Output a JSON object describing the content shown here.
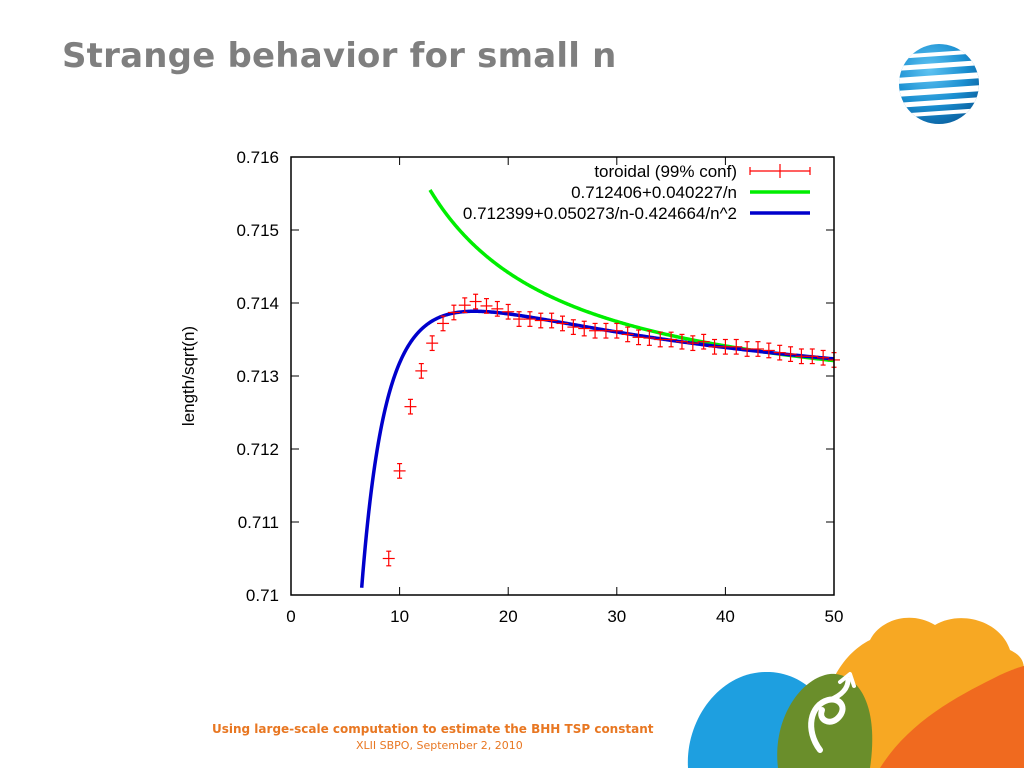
{
  "slide": {
    "title": "Strange behavior for small n",
    "footer_main": "Using large-scale computation to estimate the BHH TSP constant",
    "footer_sub": "XLII SBPO, September 2, 2010"
  },
  "logo": {
    "icon": "att-globe-icon",
    "colors": [
      "#1a8fd1",
      "#0a5f9e",
      "#ffffff"
    ]
  },
  "decor": {
    "icon": "cloud-swirl-decoration",
    "colors": [
      "#1e9fe0",
      "#f7a823",
      "#f06a1f",
      "#6a8e2b"
    ]
  },
  "chart_data": {
    "type": "line",
    "title": "",
    "xlabel": "",
    "ylabel": "length/sqrt(n)",
    "xlim": [
      0,
      50
    ],
    "ylim": [
      0.71,
      0.716
    ],
    "x_ticks": [
      0,
      10,
      20,
      30,
      40,
      50
    ],
    "x_tick_labels": [
      "0",
      "10",
      "20",
      "30",
      "40",
      "50"
    ],
    "y_ticks": [
      0.71,
      0.711,
      0.712,
      0.713,
      0.714,
      0.715,
      0.716
    ],
    "y_tick_labels": [
      "0.71",
      "0.711",
      "0.712",
      "0.713",
      "0.714",
      "0.715",
      "0.716"
    ],
    "legend_position": "top-right",
    "series": [
      {
        "name": "toroidal (99% conf)",
        "kind": "errorbar",
        "color": "#ff0000",
        "x": [
          9,
          10,
          11,
          12,
          13,
          14,
          15,
          16,
          17,
          18,
          19,
          20,
          21,
          22,
          23,
          24,
          25,
          26,
          27,
          28,
          29,
          30,
          31,
          32,
          33,
          34,
          35,
          36,
          37,
          38,
          39,
          40,
          41,
          42,
          43,
          44,
          45,
          46,
          47,
          48,
          49,
          50
        ],
        "y": [
          0.7105,
          0.7117,
          0.71258,
          0.71307,
          0.71345,
          0.71372,
          0.71387,
          0.71397,
          0.71402,
          0.71396,
          0.71392,
          0.71388,
          0.71378,
          0.71378,
          0.71376,
          0.71376,
          0.71372,
          0.71367,
          0.71365,
          0.71362,
          0.71362,
          0.71362,
          0.71357,
          0.71353,
          0.71352,
          0.7135,
          0.7135,
          0.71347,
          0.71345,
          0.71347,
          0.7134,
          0.7134,
          0.7134,
          0.71337,
          0.71337,
          0.71335,
          0.71332,
          0.7133,
          0.71327,
          0.71327,
          0.71325,
          0.71322
        ],
        "err": 0.0001
      },
      {
        "name": "0.712406+0.040227/n",
        "kind": "function",
        "color": "#00ee00",
        "formula": {
          "a": 0.712406,
          "b": 0.040227,
          "c": 0
        },
        "x_from": 12.8,
        "x_to": 50
      },
      {
        "name": "0.712399+0.050273/n-0.424664/n^2",
        "kind": "function",
        "color": "#0000cc",
        "formula": {
          "a": 0.712399,
          "b": 0.050273,
          "c": -0.424664
        },
        "x_from": 6.4,
        "x_to": 50
      }
    ]
  }
}
